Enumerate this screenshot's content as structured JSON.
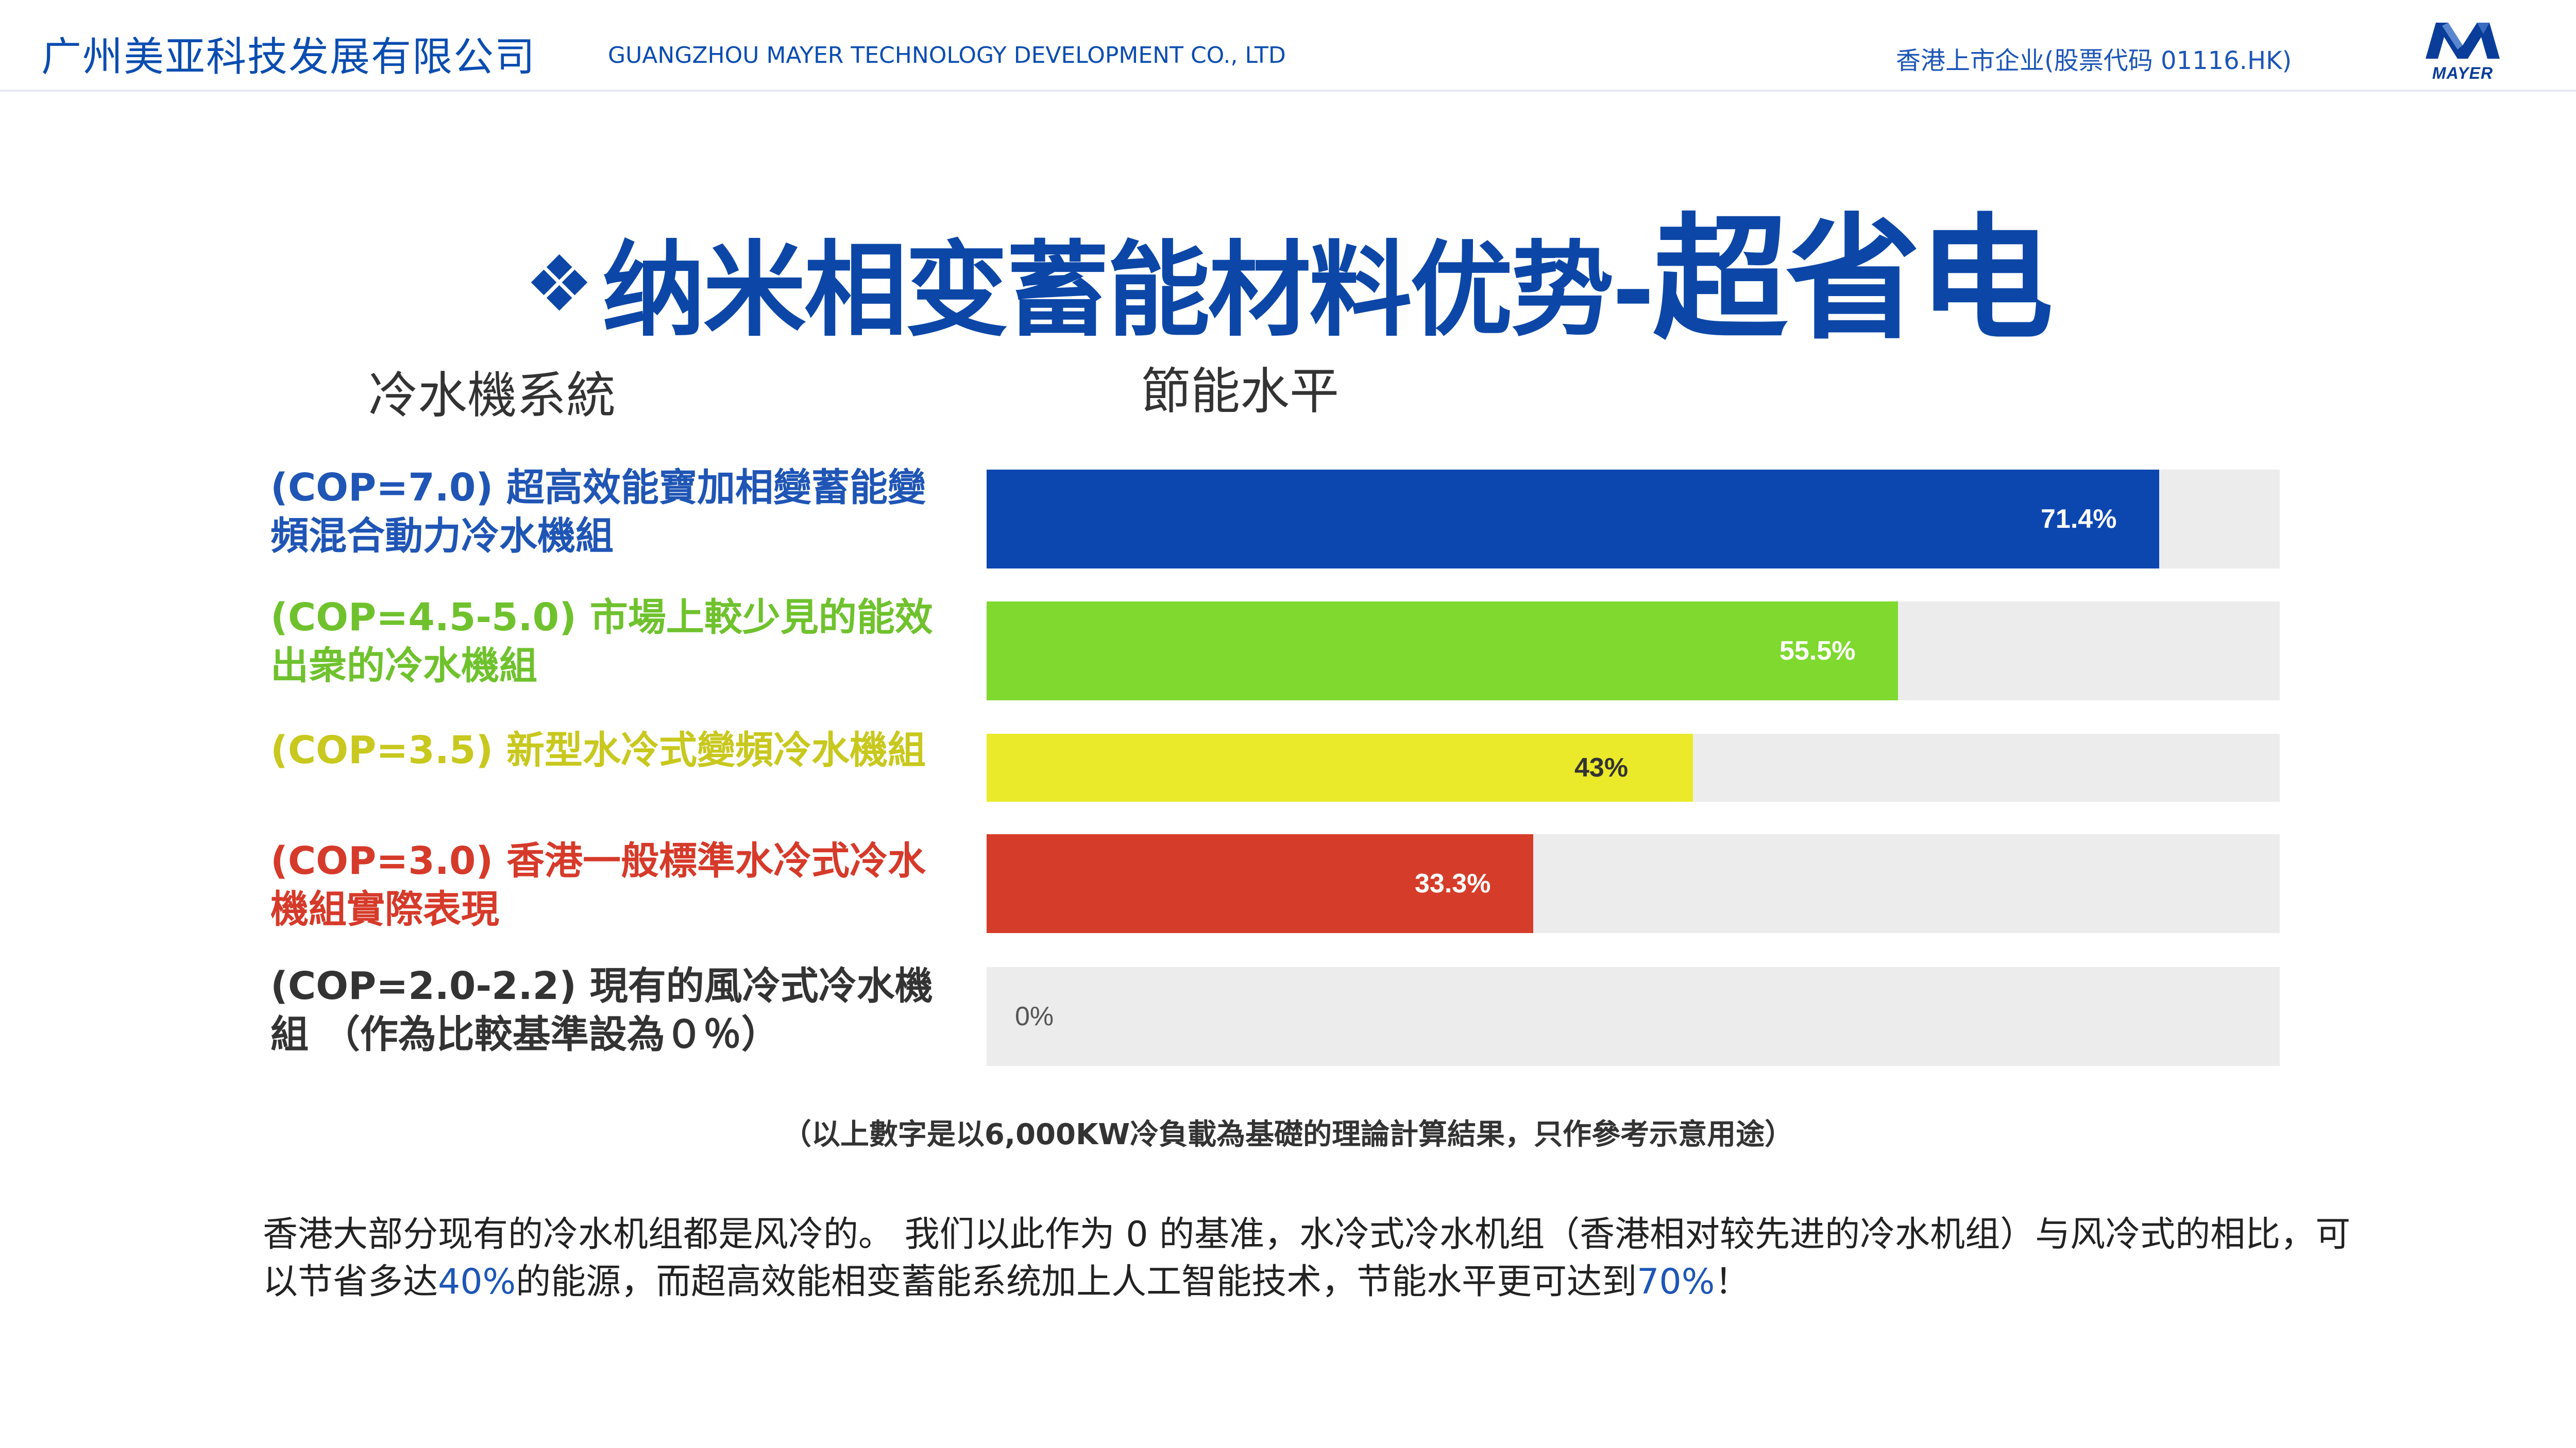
{
  "header": {
    "company_cn": "广州美亚科技发展有限公司",
    "company_en": "GUANGZHOU MAYER TECHNOLOGY DEVELOPMENT CO., LTD",
    "listing": "香港上市企业(股票代码 01116.HK)",
    "logo_text": "MAYER",
    "logo_color": "#0a3c9a"
  },
  "title": {
    "bullet": "❖",
    "main": "纳米相变蓄能材料优势-",
    "emphasis": "超省电",
    "color": "#0c47a8"
  },
  "chart_data": {
    "type": "bar",
    "orientation": "horizontal",
    "category_header": "冷水機系統",
    "value_header": "節能水平",
    "xlim": [
      0,
      100
    ],
    "unit": "%",
    "categories": [
      "(COP=7.0) 超高效能寶加相變蓄能變頻混合動力冷水機組",
      "(COP=4.5-5.0) 市場上較少見的能效出衆的冷水機組",
      "(COP=3.5) 新型水冷式變頻冷水機組",
      "(COP=3.0) 香港一般標準水冷式冷水機組實際表現",
      "(COP=2.0-2.2) 現有的風冷式冷水機組 （作為比較基準設為０％）"
    ],
    "values": [
      71.4,
      55.5,
      43,
      33.3,
      0
    ],
    "value_labels": [
      "71.4%",
      "55.5%",
      "43%",
      "33.3%",
      "0%"
    ],
    "colors": [
      "#0c47b0",
      "#7fd92f",
      "#eaea2a",
      "#d53d2a",
      "#ececec"
    ],
    "label_colors": [
      "#1f55b5",
      "#6fc22d",
      "#c8c81e",
      "#d63a2a",
      "#333333"
    ],
    "track_color": "#ececec",
    "note": "（以上數字是以6,000KW冷負載為基礎的理論計算結果，只作參考示意用途）"
  },
  "description": {
    "part1": "香港大部分现有的冷水机组都是风冷的。 我们以此作为 0 的基准，水冷式冷水机组（香港相对较先进的冷水机组）与风冷式的相比，可以节省多达",
    "highlight1": "40%",
    "part2": "的能源，而超高效能相变蓄能系统加上人工智能技术，节能水平更可达到",
    "highlight2": "70%",
    "part3": "！"
  }
}
